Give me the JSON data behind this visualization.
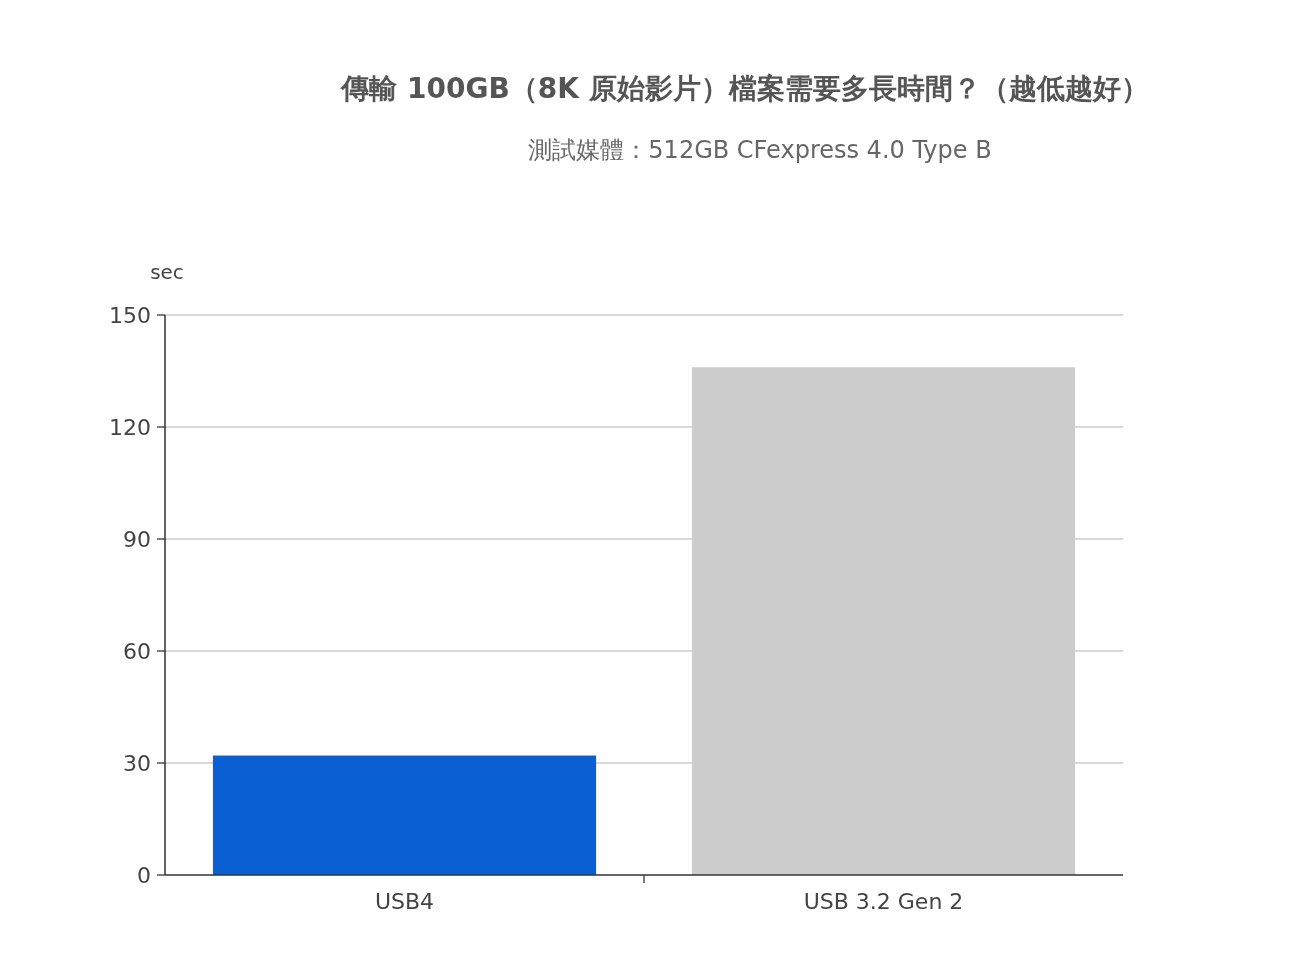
{
  "chart_data": {
    "type": "bar",
    "title": "傳輸 100GB（8K 原始影片）檔案需要多長時間？（越低越好）",
    "subtitle": "測試媒體：512GB CFexpress 4.0 Type B",
    "ylabel": "sec",
    "categories": [
      "USB4",
      "USB 3.2 Gen 2"
    ],
    "values": [
      32,
      136
    ],
    "colors": [
      "#0a5fd3",
      "#cccccc"
    ],
    "ylim": [
      0,
      150
    ],
    "yticks": [
      0,
      30,
      60,
      90,
      120,
      150
    ],
    "grid": "y"
  }
}
